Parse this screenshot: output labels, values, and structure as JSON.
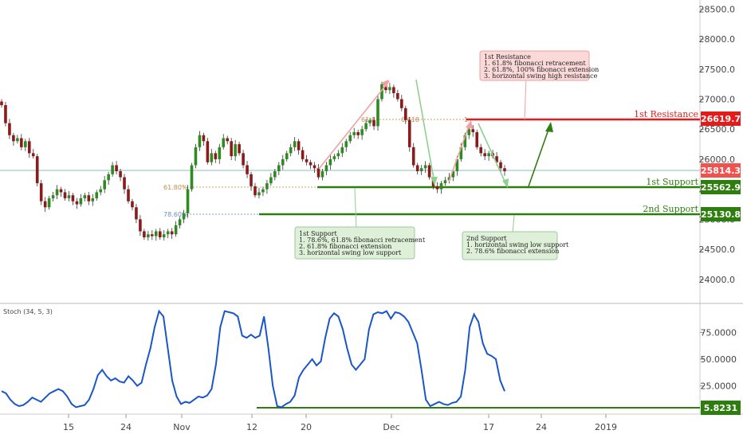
{
  "chart_data": [
    {
      "type": "candlestick",
      "x_tick_labels": [
        "15",
        "24",
        "Nov",
        "12",
        "20",
        "Dec",
        "17",
        "24",
        "2019"
      ],
      "y_ticks": [
        24000,
        24500,
        25000,
        25500,
        26000,
        26500,
        27000,
        27500,
        28000,
        28500
      ],
      "y_tick_labels": [
        "24000.0",
        "24500.0",
        "25000.0",
        "25500.0",
        "26000.0",
        "26500.0",
        "27000.0",
        "27500.0",
        "28000.0",
        "28500.0"
      ],
      "ylim": [
        23600,
        28650
      ],
      "last_price": "25814.3",
      "closes": [
        26900,
        26600,
        26400,
        26300,
        26350,
        26200,
        26300,
        26100,
        26050,
        25600,
        25300,
        25200,
        25350,
        25400,
        25500,
        25450,
        25350,
        25400,
        25300,
        25250,
        25350,
        25400,
        25300,
        25350,
        25450,
        25500,
        25650,
        25750,
        25900,
        25800,
        25700,
        25500,
        25300,
        25200,
        25000,
        24800,
        24700,
        24750,
        24720,
        24800,
        24700,
        24750,
        24800,
        24750,
        24900,
        25000,
        25100,
        25500,
        25900,
        26200,
        26400,
        26300,
        25950,
        26100,
        26000,
        26200,
        26350,
        26300,
        26050,
        26250,
        26100,
        25900,
        25750,
        25550,
        25400,
        25450,
        25500,
        25600,
        25700,
        25800,
        25900,
        26000,
        26100,
        26200,
        26300,
        26150,
        26000,
        25950,
        25900,
        25850,
        25700,
        25800,
        25900,
        26000,
        26050,
        26100,
        26200,
        26300,
        26400,
        26450,
        26400,
        26500,
        26600,
        26650,
        26550,
        27000,
        27250,
        27150,
        27200,
        27100,
        27000,
        26850,
        26650,
        26200,
        25900,
        25800,
        25850,
        25900,
        25700,
        25550,
        25500,
        25600,
        25650,
        25700,
        25800,
        26000,
        26200,
        26400,
        26500,
        26450,
        26200,
        26100,
        26050,
        26100,
        26050,
        25950,
        25850,
        25800
      ],
      "levels": [
        {
          "label": "1st Resistance",
          "value": "26619.7",
          "color": "#e31b1b"
        },
        {
          "label": "1st Support",
          "value": "25562.9",
          "color": "#2e7d0f"
        },
        {
          "label": "2nd Support",
          "value": "25130.8",
          "color": "#2e7d0f"
        }
      ],
      "fib_labels": [
        "61.80%",
        "78.60%",
        "0.618",
        "61.8",
        "1"
      ],
      "notes": {
        "resistance": [
          "1st Resistance",
          "1. 61.8% fibonacci retracement",
          "2. 61.8%, 100% fibonacci extension",
          "3. horizontal swing high resistance"
        ],
        "support1": [
          "1st Support",
          "1. 78.6%, 61.8% fibonacci retracement",
          "2. 61.8% fibonacci extension",
          "3. horizontal swing low support"
        ],
        "support2": [
          "2nd Support",
          "1. horizontal swing low support",
          "2. 78.6% fibonacci extension"
        ]
      }
    },
    {
      "type": "line",
      "title": "Stoch (34, 5, 3)",
      "y_ticks": [
        25,
        50,
        75
      ],
      "y_tick_labels": [
        "25.0000",
        "50.0000",
        "75.0000"
      ],
      "ylim": [
        0,
        100
      ],
      "level": "5.8231",
      "values": [
        20,
        18,
        12,
        8,
        6,
        7,
        10,
        14,
        12,
        10,
        14,
        18,
        20,
        22,
        20,
        15,
        8,
        5,
        6,
        7,
        12,
        22,
        35,
        40,
        34,
        30,
        32,
        29,
        28,
        34,
        30,
        25,
        28,
        45,
        60,
        80,
        95,
        90,
        60,
        30,
        15,
        8,
        10,
        9,
        12,
        15,
        14,
        16,
        22,
        45,
        80,
        95,
        94,
        93,
        90,
        72,
        70,
        73,
        70,
        72,
        90,
        60,
        25,
        6,
        5,
        8,
        10,
        16,
        33,
        40,
        45,
        50,
        44,
        48,
        70,
        88,
        93,
        90,
        78,
        60,
        45,
        40,
        45,
        50,
        78,
        92,
        94,
        93,
        95,
        88,
        94,
        93,
        90,
        85,
        75,
        65,
        40,
        12,
        6,
        8,
        10,
        8,
        7,
        9,
        10,
        15,
        40,
        80,
        92,
        85,
        65,
        55,
        53,
        50,
        30,
        20
      ],
      "x_domain_bars": 128
    }
  ]
}
